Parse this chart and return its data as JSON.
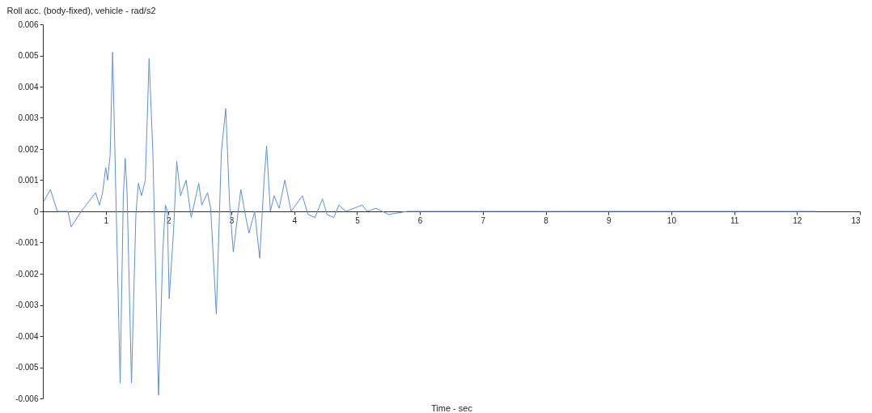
{
  "chart_data": {
    "type": "line",
    "ylabel": "Roll acc. (body-fixed), vehicle - rad/s2",
    "xlabel": "Time - sec",
    "xlim": [
      0,
      13
    ],
    "xticks": [
      1,
      2,
      3,
      4,
      5,
      6,
      7,
      8,
      9,
      10,
      11,
      12,
      13
    ],
    "ylim": [
      -0.006,
      0.006
    ],
    "yticks": [
      -0.006,
      -0.005,
      -0.004,
      -0.003,
      -0.002,
      -0.001,
      0,
      0.001,
      0.002,
      0.003,
      0.004,
      0.005,
      0.006
    ],
    "grid": false,
    "series": [
      {
        "color": "#5b8fe0",
        "x": [
          0.01,
          0.12,
          0.23,
          0.4,
          0.45,
          0.61,
          0.84,
          0.9,
          0.95,
          1.0,
          1.03,
          1.07,
          1.11,
          1.16,
          1.23,
          1.28,
          1.31,
          1.34,
          1.41,
          1.48,
          1.52,
          1.57,
          1.63,
          1.69,
          1.75,
          1.84,
          1.91,
          1.95,
          1.98,
          2.01,
          2.08,
          2.13,
          2.19,
          2.28,
          2.36,
          2.48,
          2.53,
          2.62,
          2.67,
          2.76,
          2.84,
          2.91,
          2.97,
          3.03,
          3.15,
          3.23,
          3.28,
          3.37,
          3.45,
          3.52,
          3.56,
          3.62,
          3.68,
          3.76,
          3.85,
          3.95,
          4.13,
          4.22,
          4.33,
          4.45,
          4.52,
          4.63,
          4.71,
          4.82,
          5.08,
          5.16,
          5.3,
          5.5,
          5.8,
          6.2,
          6.6,
          7.0,
          7.5,
          8.0,
          8.5,
          9.0,
          9.5,
          10.0,
          10.5,
          11.0,
          11.5,
          12.0,
          12.3
        ],
        "values": [
          0.0003,
          0.0007,
          0,
          0,
          -0.0005,
          0,
          0.0006,
          0.0002,
          0.0006,
          0.0014,
          0.001,
          0.0018,
          0.0051,
          0.0007,
          -0.0055,
          0.0005,
          0.0017,
          0.0006,
          -0.0055,
          -0.0001,
          0.0009,
          0.0005,
          0.001,
          0.0049,
          0.0019,
          -0.0059,
          -0.0012,
          0.0002,
          0,
          -0.0028,
          -0.0006,
          0.0016,
          0.0005,
          0.001,
          -0.0002,
          0.0009,
          0.0002,
          0.0006,
          0.0001,
          -0.0033,
          0.0019,
          0.0033,
          0.0003,
          -0.0013,
          0.0007,
          -0.0002,
          -0.0007,
          0,
          -0.0015,
          0.001,
          0.0021,
          0,
          0.0005,
          0.0001,
          0.001,
          0,
          0.0005,
          -0.0001,
          -0.0002,
          0.0004,
          -0.0001,
          -0.0002,
          0.0002,
          0,
          0.0002,
          0,
          0.0001,
          -0.0001,
          0,
          0,
          0,
          0,
          0,
          0,
          0,
          0,
          0,
          0,
          0,
          0,
          0,
          0,
          0
        ]
      }
    ]
  }
}
